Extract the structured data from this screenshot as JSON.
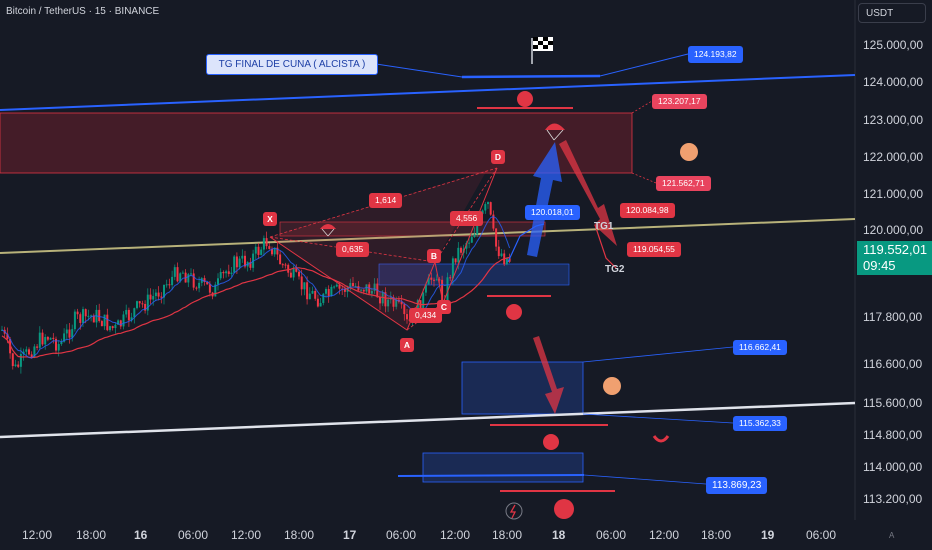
{
  "header": {
    "title": "Bitcoin / TetherUS · 15 · BINANCE",
    "currency": "USDT"
  },
  "chart_data": {
    "type": "candlestick",
    "x_ticks": [
      "12:00",
      "18:00",
      "16",
      "06:00",
      "12:00",
      "18:00",
      "17",
      "06:00",
      "12:00",
      "18:00",
      "18",
      "06:00",
      "12:00",
      "18:00",
      "19",
      "06:00"
    ],
    "bold_ticks": [
      "16",
      "17",
      "18",
      "19"
    ],
    "y_ticks": [
      "125.000,00",
      "124.000,00",
      "123.000,00",
      "122.000,00",
      "121.000,00",
      "120.000,00",
      "117.800,00",
      "116.600,00",
      "115.600,00",
      "114.800,00",
      "114.000,00",
      "113.200,00"
    ],
    "current_price": "119.552,01",
    "countdown": "09:45",
    "annotations": {
      "tg_final": "TG FINAL  DE CUNA ( ALCISTA )",
      "ratios": [
        "1,614",
        "0,635",
        "4,556",
        "0,434"
      ],
      "points": [
        "X",
        "A",
        "B",
        "C",
        "D"
      ],
      "targets": [
        "TG1",
        "TG2"
      ],
      "price_labels": [
        "124.193,82",
        "123.207,17",
        "121.562,71",
        "120.018,01",
        "120.084,98",
        "119.054,55",
        "116.662,41",
        "115.362,33",
        "113.869,23"
      ]
    },
    "colors": {
      "bg": "#161a25",
      "up": "#089981",
      "down": "#f23645",
      "accent": "#2962ff"
    }
  }
}
